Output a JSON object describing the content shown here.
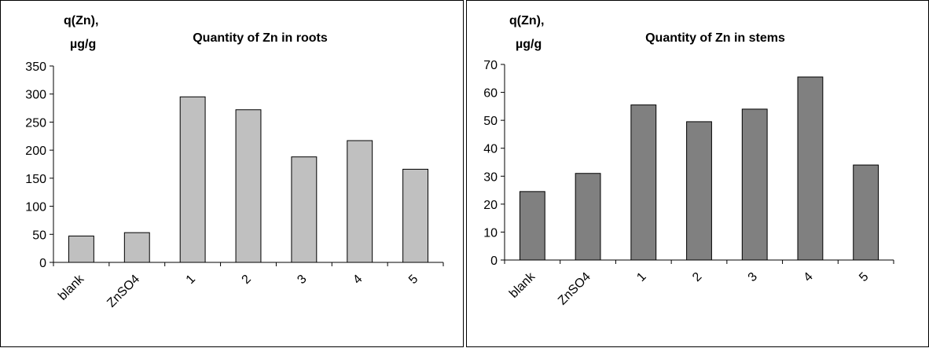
{
  "chart_data": [
    {
      "type": "bar",
      "title": "Quantity of Zn in roots",
      "ylabel": "q(Zn),\nµg/g",
      "ylabel_lines": [
        "q(Zn),",
        "µg/g"
      ],
      "xlabel": "",
      "categories": [
        "blank",
        "ZnSO4",
        "1",
        "2",
        "3",
        "4",
        "5"
      ],
      "values": [
        47,
        53,
        295,
        272,
        188,
        217,
        166
      ],
      "ylim": [
        0,
        350
      ],
      "yticks": [
        0,
        50,
        100,
        150,
        200,
        250,
        300,
        350
      ],
      "ytick_labels": [
        "0",
        "50",
        "100",
        "150",
        "200",
        "250",
        "300",
        "350"
      ],
      "bar_color": "#c0c0c0",
      "grid": false,
      "legend": "none"
    },
    {
      "type": "bar",
      "title": "Quantity of Zn in stems",
      "ylabel": "q(Zn),\nµg/g",
      "ylabel_lines": [
        "q(Zn),",
        "µg/g"
      ],
      "xlabel": "",
      "categories": [
        "blank",
        "ZnSO4",
        "1",
        "2",
        "3",
        "4",
        "5"
      ],
      "values": [
        24.5,
        31,
        55.5,
        49.5,
        54,
        65.5,
        34
      ],
      "ylim": [
        0,
        70
      ],
      "yticks": [
        0,
        10,
        20,
        30,
        40,
        50,
        60,
        70
      ],
      "ytick_labels": [
        "0",
        "10",
        "20",
        "30",
        "40",
        "50",
        "60",
        "70"
      ],
      "bar_color": "#808080",
      "grid": false,
      "legend": "none"
    }
  ]
}
